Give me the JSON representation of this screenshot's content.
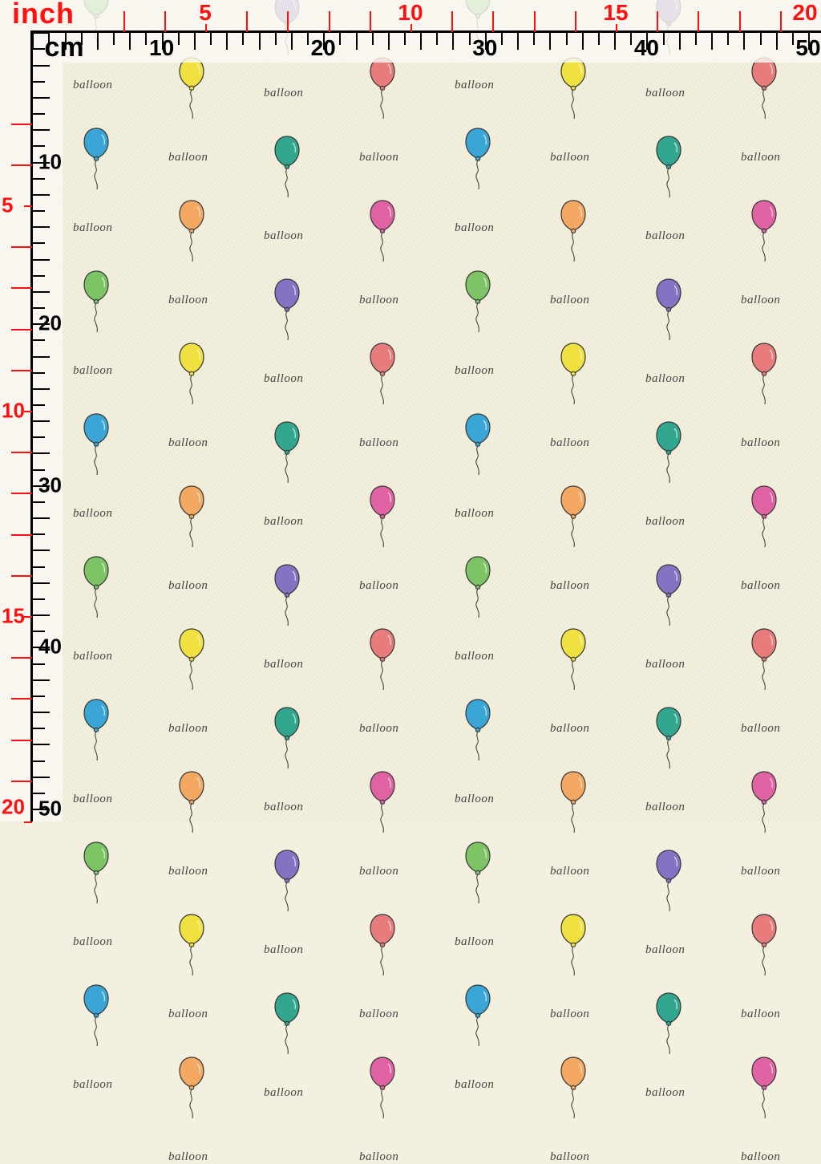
{
  "rulers": {
    "inch_unit": "inch",
    "cm_unit": "cm",
    "inch_labels": [
      "5",
      "10",
      "15",
      "20"
    ],
    "cm_labels": [
      "10",
      "20",
      "30",
      "40",
      "50"
    ],
    "inch_color": "#ff1010",
    "cm_color": "#000000"
  },
  "pattern": {
    "text": "balloon",
    "background": "#f2efdd",
    "columns": [
      {
        "colors": [
          "#7cc466",
          "#3aa6d6"
        ]
      },
      {
        "colors": [
          "#f0e040",
          "#f4a862"
        ]
      },
      {
        "colors": [
          "#8472c2",
          "#32a68e"
        ]
      },
      {
        "colors": [
          "#e87c7c",
          "#e062a2"
        ]
      }
    ]
  }
}
